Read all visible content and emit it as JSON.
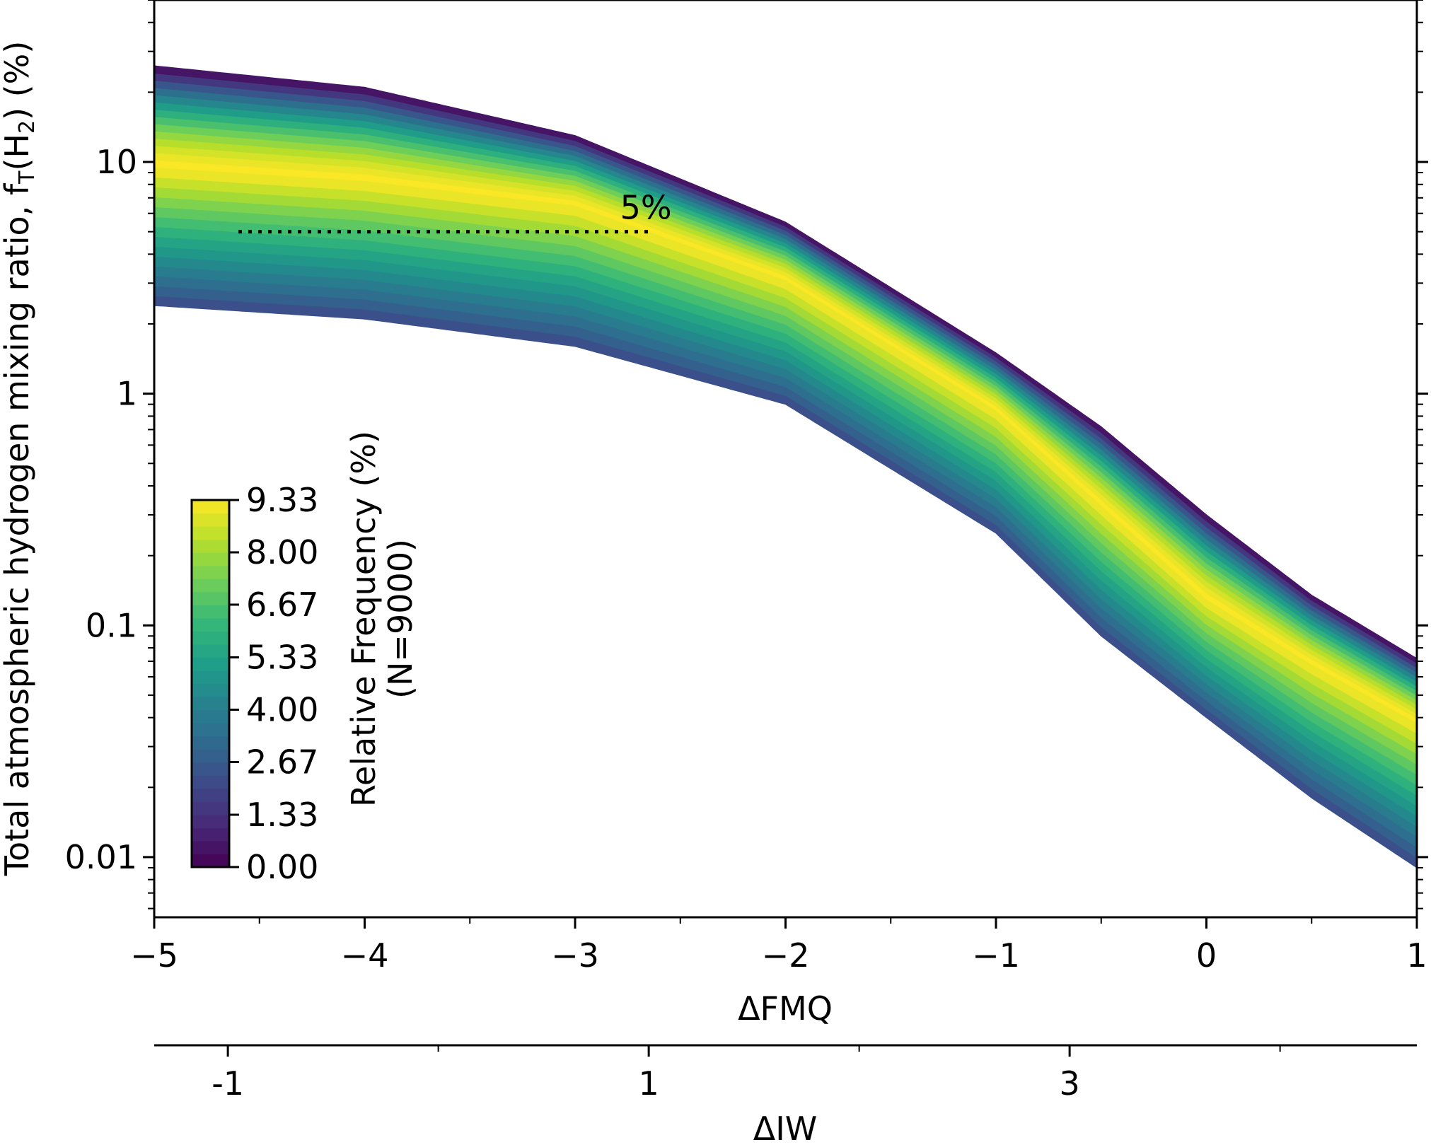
{
  "chart_data": {
    "type": "heatmap",
    "title": "",
    "xlabel": "ΔFMQ",
    "x2label": "ΔIW",
    "ylabel": {
      "prefix": "Total atmospheric hydrogen mixing ratio, f",
      "sub1": "T",
      "mid": "(H",
      "sub2": "2",
      "suffix": ") (%)"
    },
    "xlim": [
      -5,
      1
    ],
    "x2lim": [
      -1.35,
      4.65
    ],
    "ylim": [
      0.0055,
      50
    ],
    "y_scale": "log",
    "x_ticks": [
      {
        "value": -5,
        "label": "−5"
      },
      {
        "value": -4,
        "label": "−4"
      },
      {
        "value": -3,
        "label": "−3"
      },
      {
        "value": -2,
        "label": "−2"
      },
      {
        "value": -1,
        "label": "−1"
      },
      {
        "value": 0,
        "label": "0"
      },
      {
        "value": 1,
        "label": "1"
      }
    ],
    "x2_ticks": [
      {
        "value": -1,
        "label": "-1"
      },
      {
        "value": 1,
        "label": "1"
      },
      {
        "value": 3,
        "label": "3"
      }
    ],
    "y_ticks": [
      {
        "value": 10,
        "label": "10"
      },
      {
        "value": 1,
        "label": "1"
      },
      {
        "value": 0.1,
        "label": "0.1"
      },
      {
        "value": 0.01,
        "label": "0.01"
      }
    ],
    "colorbar": {
      "label_line1": "Relative Frequency (%)",
      "label_line2": "(N=9000)",
      "min": 0,
      "max": 9.33,
      "ticks": [
        {
          "value": 0.0,
          "label": "0.00"
        },
        {
          "value": 1.33,
          "label": "1.33"
        },
        {
          "value": 2.67,
          "label": "2.67"
        },
        {
          "value": 4.0,
          "label": "4.00"
        },
        {
          "value": 5.33,
          "label": "5.33"
        },
        {
          "value": 6.67,
          "label": "6.67"
        },
        {
          "value": 8.0,
          "label": "8.00"
        },
        {
          "value": 9.33,
          "label": "9.33"
        }
      ],
      "colormap": "viridis",
      "colors": [
        "#440154",
        "#482878",
        "#3e4989",
        "#31688e",
        "#26828e",
        "#1f9e89",
        "#35b779",
        "#6ece58",
        "#b5de2b",
        "#fde725"
      ]
    },
    "band": {
      "description_x": [
        -5,
        -4,
        -3,
        -2,
        -1,
        -0.5,
        0,
        0.5,
        1
      ],
      "upper": [
        26,
        21,
        13,
        5.5,
        1.5,
        0.72,
        0.3,
        0.135,
        0.072
      ],
      "lower": [
        2.4,
        2.1,
        1.6,
        0.9,
        0.25,
        0.09,
        0.04,
        0.018,
        0.009
      ],
      "peak": [
        9.5,
        8.3,
        6.5,
        3.1,
        0.85,
        0.33,
        0.13,
        0.068,
        0.038
      ],
      "peak_frequency": 9.33
    },
    "annotation": {
      "label": "5%",
      "y": 5,
      "x_start": -4.6,
      "x_end": -2.65
    }
  }
}
